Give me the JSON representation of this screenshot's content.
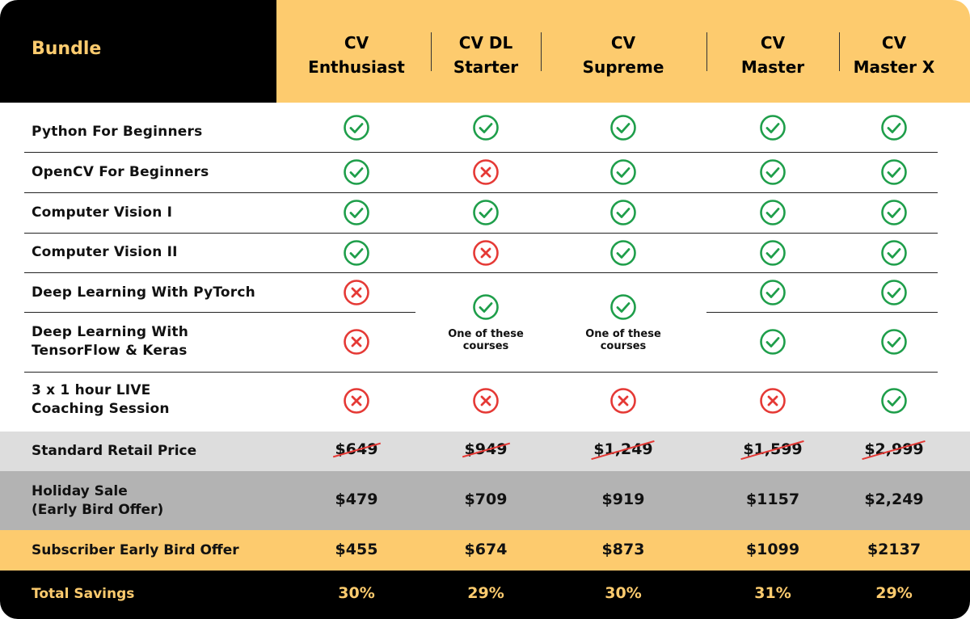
{
  "header": {
    "bundle_label": "Bundle",
    "columns": [
      {
        "line1": "CV",
        "line2": "Enthusiast"
      },
      {
        "line1": "CV DL",
        "line2": "Starter"
      },
      {
        "line1": "CV",
        "line2": "Supreme"
      },
      {
        "line1": "CV",
        "line2": "Master"
      },
      {
        "line1": "CV",
        "line2": "Master X"
      }
    ]
  },
  "rows": [
    {
      "label": "Python For Beginners",
      "cells": [
        "check",
        "check",
        "check",
        "check",
        "check"
      ]
    },
    {
      "label": "OpenCV For Beginners",
      "cells": [
        "check",
        "cross",
        "check",
        "check",
        "check"
      ]
    },
    {
      "label": "Computer Vision I",
      "cells": [
        "check",
        "check",
        "check",
        "check",
        "check"
      ]
    },
    {
      "label": "Computer Vision II",
      "cells": [
        "check",
        "cross",
        "check",
        "check",
        "check"
      ]
    },
    {
      "label": "Deep Learning With PyTorch",
      "cells": [
        "cross",
        "check",
        "check",
        "check",
        "check"
      ]
    },
    {
      "label_line1": "Deep Learning With",
      "label_line2": "TensorFlow & Keras",
      "cells": [
        "cross",
        "check",
        "check",
        "check",
        "check"
      ]
    },
    {
      "label_line1": "3 x 1 hour LIVE",
      "label_line2": "Coaching Session",
      "cells": [
        "cross",
        "cross",
        "cross",
        "cross",
        "check"
      ]
    }
  ],
  "merged_note_line1": "One of these",
  "merged_note_line2": "courses",
  "pricing": {
    "retail_label": "Standard Retail Price",
    "retail": [
      "$649",
      "$949",
      "$1,249",
      "$1,599",
      "$2,999"
    ],
    "holiday_label_line1": "Holiday Sale",
    "holiday_label_line2": "(Early Bird Offer)",
    "holiday": [
      "$479",
      "$709",
      "$919",
      "$1157",
      "$2,249"
    ],
    "subscriber_label": "Subscriber Early Bird Offer",
    "subscriber": [
      "$455",
      "$674",
      "$873",
      "$1099",
      "$2137"
    ],
    "savings_label": "Total Savings",
    "savings": [
      "30%",
      "29%",
      "30%",
      "31%",
      "29%"
    ]
  },
  "colors": {
    "accent_yellow": "#fdcb6e",
    "check_green": "#1e9e4a",
    "cross_red": "#e53935",
    "retail_band": "#dddddd",
    "holiday_band": "#b3b3b3",
    "black": "#000000"
  }
}
